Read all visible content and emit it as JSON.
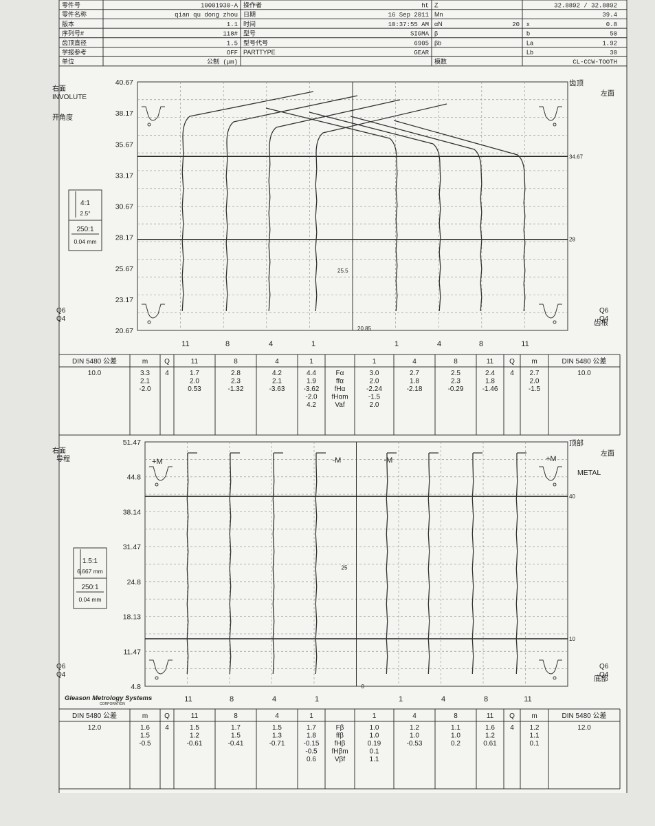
{
  "header": {
    "rows": [
      {
        "l1": "零件号",
        "v1": "10001930-A",
        "l2": "操作者",
        "v2": "ht",
        "l3": "Z",
        "v3": "32.8892 / 32.8892"
      },
      {
        "l1": "零件名称",
        "v1": "qian qu dong zhou",
        "l2": "日期",
        "v2": "16 Sep 2011",
        "l3": "Mn",
        "v3": "39.4"
      },
      {
        "l1": "版本",
        "v1": "1.1",
        "l2": "时间",
        "v2": "10:37:55 AM",
        "l3": "αN",
        "v3": "0.8",
        "l3b": "20",
        "l3c": "x"
      },
      {
        "l1": "序列号#",
        "v1": "118#",
        "l2": "型号",
        "v2": "SIGMA",
        "l3": "β",
        "v3": "50",
        "l3c": "b"
      },
      {
        "l1": "齿顶直径",
        "v1": "1.5",
        "l2": "型号代号",
        "v2": "6905",
        "l3": "βb",
        "v3": "1.92",
        "l3c": "La"
      },
      {
        "l1": "学报参考",
        "v1": "OFF",
        "l2": "PARTTYPE",
        "v2": "GEAR",
        "l3": "",
        "v3": "30",
        "l3c": "Lb"
      },
      {
        "l1": "单位",
        "v1": "公制 (μm)",
        "l2": "",
        "v2": "",
        "l3": "模数",
        "v3": "CL-CCW-TOOTH"
      }
    ]
  },
  "chart_data": [
    {
      "type": "line",
      "title": "INVOLUTE",
      "ylabel": "开角度",
      "ylim": [
        20.67,
        40.67
      ],
      "yticks": [
        "40.67",
        "38.17",
        "35.67",
        "33.17",
        "30.67",
        "28.17",
        "25.67",
        "23.17",
        "20.67"
      ],
      "right_face": "右面",
      "left_face": "左面",
      "top_label": "齿顶",
      "bottom_label": "齿根",
      "eval_upper": "34.67",
      "eval_lower": "28",
      "center_mark": "25.5",
      "base_mark": "20.85",
      "quality_top": "Q6",
      "quality_bottom": "Q4",
      "scale_box": {
        "mag1": "4:1",
        "val1": "2.5°",
        "mag2": "250:1",
        "val2": "0.04 mm"
      },
      "teeth_left": [
        "11",
        "8",
        "4",
        "1"
      ],
      "teeth_right": [
        "1",
        "4",
        "8",
        "11"
      ]
    },
    {
      "type": "line",
      "title": "导程",
      "ylim": [
        0,
        51.47
      ],
      "yticks": [
        "51.47",
        "44.8",
        "38.14",
        "31.47",
        "24.8",
        "18.13",
        "11.47",
        "4.8"
      ],
      "right_face": "右面",
      "left_face": "左面",
      "top_label": "顶部",
      "bottom_label": "底部",
      "material": "METAL",
      "plus_m": "+M",
      "minus_m": "-M",
      "eval_upper": "40",
      "eval_lower": "10",
      "center_mark": "25",
      "base_mark": "0",
      "quality_top": "Q6",
      "quality_bottom": "Q4",
      "scale_box": {
        "mag1": "1.5:1",
        "val1": "6.667 mm",
        "mag2": "250:1",
        "val2": "0.04 mm"
      },
      "teeth_left": [
        "11",
        "8",
        "4",
        "1"
      ],
      "teeth_right": [
        "1",
        "4",
        "8",
        "11"
      ]
    }
  ],
  "involute_table": {
    "din": "DIN 5480 公差",
    "h_m": "m",
    "h_q": "Q",
    "teeth_left": [
      "11",
      "8",
      "4",
      "1"
    ],
    "teeth_right": [
      "1",
      "4",
      "8",
      "11"
    ],
    "left_din": "10.0",
    "right_din": "10.0",
    "q_left": "4",
    "q_right": "4",
    "m_left": [
      "3.3",
      "2.1",
      "-2.0"
    ],
    "m_right": [
      "2.7",
      "2.0",
      "-1.5"
    ],
    "params": [
      "Fα",
      "ffα",
      "fHα",
      "fHαm",
      "Vaf"
    ],
    "left_cols": [
      [
        "1.7",
        "2.0",
        "0.53"
      ],
      [
        "2.8",
        "2.3",
        "-1.32"
      ],
      [
        "4.2",
        "2.1",
        "-3.63"
      ],
      [
        "4.4",
        "1.9",
        "-3.62",
        "-2.0",
        "4.2"
      ]
    ],
    "right_cols": [
      [
        "3.0",
        "2.0",
        "-2.24",
        "-1.5",
        "2.0"
      ],
      [
        "2.7",
        "1.8",
        "-2.18"
      ],
      [
        "2.5",
        "2.3",
        "-0.29"
      ],
      [
        "2.4",
        "1.8",
        "-1.46"
      ]
    ]
  },
  "lead_table": {
    "din": "DIN 5480 公差",
    "h_m": "m",
    "h_q": "Q",
    "teeth_left": [
      "11",
      "8",
      "4",
      "1"
    ],
    "teeth_right": [
      "1",
      "4",
      "8",
      "11"
    ],
    "left_din": "12.0",
    "right_din": "12.0",
    "q_left": "4",
    "q_right": "4",
    "m_left": [
      "1.6",
      "1.5",
      "-0.5"
    ],
    "m_right": [
      "1.2",
      "1.1",
      "0.1"
    ],
    "params": [
      "Fβ",
      "ffβ",
      "fHβ",
      "fHβm",
      "Vβf"
    ],
    "left_cols": [
      [
        "1.5",
        "1.2",
        "-0.61"
      ],
      [
        "1.7",
        "1.5",
        "-0.41"
      ],
      [
        "1.5",
        "1.3",
        "-0.71"
      ],
      [
        "1.7",
        "1.8",
        "-0.15",
        "-0.5",
        "0.6"
      ]
    ],
    "right_cols": [
      [
        "1.0",
        "1.0",
        "0.19",
        "0.1",
        "1.1"
      ],
      [
        "1.2",
        "1.0",
        "-0.53"
      ],
      [
        "1.1",
        "1.0",
        "0.2"
      ],
      [
        "1.6",
        "1.2",
        "0.61"
      ]
    ]
  },
  "brand": {
    "name": "Gleason Metrology Systems",
    "sub": "CORPORATION"
  }
}
